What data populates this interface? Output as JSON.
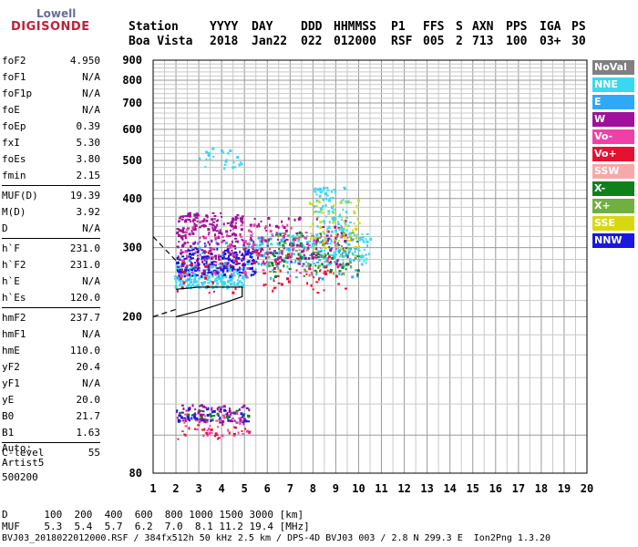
{
  "logo": {
    "line1": "Lowell",
    "line2": "DIGISONDE"
  },
  "header": {
    "labels": [
      "Station",
      "YYYY",
      "DAY",
      "DDD",
      "HHMMSS",
      "P1",
      "FFS",
      "S",
      "AXN",
      "PPS",
      "IGA",
      "PS"
    ],
    "values": [
      "Boa Vista",
      "2018",
      "Jan22",
      "022",
      "012000",
      "RSF",
      "005",
      "2",
      "713",
      "100",
      "03+",
      "30"
    ]
  },
  "params": {
    "group1": [
      {
        "k": "foF2",
        "v": "4.950"
      },
      {
        "k": "foF1",
        "v": "N/A"
      },
      {
        "k": "foF1p",
        "v": "N/A"
      },
      {
        "k": "foE",
        "v": "N/A"
      },
      {
        "k": "foEp",
        "v": "0.39"
      },
      {
        "k": "fxI",
        "v": "5.30"
      },
      {
        "k": "foEs",
        "v": "3.80"
      },
      {
        "k": "fmin",
        "v": "2.15"
      }
    ],
    "group2": [
      {
        "k": "MUF(D)",
        "v": "19.39"
      },
      {
        "k": "M(D)",
        "v": "3.92"
      },
      {
        "k": "D",
        "v": "N/A"
      }
    ],
    "group3": [
      {
        "k": "h`F",
        "v": "231.0"
      },
      {
        "k": "h`F2",
        "v": "231.0"
      },
      {
        "k": "h`E",
        "v": "N/A"
      },
      {
        "k": "h`Es",
        "v": "120.0"
      }
    ],
    "group4": [
      {
        "k": "hmF2",
        "v": "237.7"
      },
      {
        "k": "hmF1",
        "v": "N/A"
      },
      {
        "k": "hmE",
        "v": "110.0"
      },
      {
        "k": "yF2",
        "v": "20.4"
      },
      {
        "k": "yF1",
        "v": "N/A"
      },
      {
        "k": "yE",
        "v": "20.0"
      },
      {
        "k": "B0",
        "v": "21.7"
      },
      {
        "k": "B1",
        "v": "1.63"
      }
    ],
    "clevel": {
      "k": "C-level",
      "v": "55"
    },
    "auto": [
      "Auto:",
      "Artist5",
      "500200"
    ]
  },
  "legend": [
    {
      "label": "NoVal",
      "color": "#808080"
    },
    {
      "label": "NNE",
      "color": "#3ad8f0"
    },
    {
      "label": "E",
      "color": "#30a8f8"
    },
    {
      "label": "W",
      "color": "#a0109a"
    },
    {
      "label": "Vo-",
      "color": "#f040a8"
    },
    {
      "label": "Vo+",
      "color": "#e81030"
    },
    {
      "label": "SSW",
      "color": "#f8a8a8"
    },
    {
      "label": "X-",
      "color": "#10801a"
    },
    {
      "label": "X+",
      "color": "#70b040"
    },
    {
      "label": "SSE",
      "color": "#d8d810"
    },
    {
      "label": "NNW",
      "color": "#1818e0"
    }
  ],
  "chart_data": {
    "type": "scatter",
    "title": "",
    "xlabel": "",
    "ylabel": "",
    "xlim": [
      1,
      20
    ],
    "ylim": [
      80,
      900
    ],
    "x_ticks": [
      1,
      2,
      3,
      4,
      5,
      6,
      7,
      8,
      9,
      10,
      11,
      12,
      13,
      14,
      15,
      16,
      17,
      18,
      19,
      20
    ],
    "y_ticks": [
      80,
      200,
      300,
      400,
      500,
      600,
      700,
      800,
      900
    ],
    "y_log": true,
    "grid": true,
    "legend_placement": "right",
    "clusters": [
      {
        "series": "NNE",
        "x": [
          1.9,
          5.0
        ],
        "y": [
          238,
          275
        ],
        "n": 240
      },
      {
        "series": "NNE",
        "x": [
          5.0,
          10.5
        ],
        "y": [
          270,
          330
        ],
        "n": 220
      },
      {
        "series": "E",
        "x": [
          2.0,
          10.0
        ],
        "y": [
          250,
          320
        ],
        "n": 120
      },
      {
        "series": "W",
        "x": [
          2.0,
          5.0
        ],
        "y": [
          260,
          370
        ],
        "n": 260
      },
      {
        "series": "W",
        "x": [
          5.0,
          9.5
        ],
        "y": [
          270,
          360
        ],
        "n": 120
      },
      {
        "series": "NNW",
        "x": [
          2.0,
          5.5
        ],
        "y": [
          255,
          300
        ],
        "n": 160
      },
      {
        "series": "Vo-",
        "x": [
          2.0,
          9.5
        ],
        "y": [
          255,
          350
        ],
        "n": 120
      },
      {
        "series": "Vo+",
        "x": [
          2.0,
          9.5
        ],
        "y": [
          230,
          300
        ],
        "n": 90
      },
      {
        "series": "X-",
        "x": [
          6.0,
          10.0
        ],
        "y": [
          255,
          330
        ],
        "n": 60
      },
      {
        "series": "X+",
        "x": [
          6.0,
          10.0
        ],
        "y": [
          255,
          330
        ],
        "n": 50
      },
      {
        "series": "SSE",
        "x": [
          7.8,
          10.0
        ],
        "y": [
          300,
          400
        ],
        "n": 70
      },
      {
        "series": "NNE",
        "x": [
          8.0,
          9.6
        ],
        "y": [
          330,
          430
        ],
        "n": 80
      },
      {
        "series": "W",
        "x": [
          2.0,
          5.2
        ],
        "y": [
          108,
          120
        ],
        "n": 70
      },
      {
        "series": "NNW",
        "x": [
          2.0,
          5.2
        ],
        "y": [
          108,
          118
        ],
        "n": 50
      },
      {
        "series": "Vo-",
        "x": [
          2.0,
          5.2
        ],
        "y": [
          100,
          115
        ],
        "n": 40
      },
      {
        "series": "X-",
        "x": [
          2.0,
          5.2
        ],
        "y": [
          110,
          116
        ],
        "n": 20
      },
      {
        "series": "Vo+",
        "x": [
          2.0,
          5.2
        ],
        "y": [
          98,
          110
        ],
        "n": 25
      },
      {
        "series": "NNE",
        "x": [
          3.0,
          4.9
        ],
        "y": [
          480,
          540
        ],
        "n": 25
      }
    ],
    "profile_solid": [
      [
        2.0,
        200
      ],
      [
        3.0,
        207
      ],
      [
        4.0,
        216
      ],
      [
        4.9,
        225
      ],
      [
        4.9,
        238
      ],
      [
        4.0,
        238
      ],
      [
        3.0,
        238
      ],
      [
        2.0,
        235
      ]
    ],
    "profile_dashed_lower": [
      [
        1.0,
        200
      ],
      [
        2.0,
        209
      ]
    ],
    "profile_dashed_upper": [
      [
        1.0,
        320
      ],
      [
        2.0,
        278
      ]
    ]
  },
  "footer": {
    "d_row": "D      100  200  400  600  800 1000 1500 3000 [km]",
    "muf_row": "MUF    5.3  5.4  5.7  6.2  7.0  8.1 11.2 19.4 [MHz]",
    "file_row": "BVJ03_2018022012000.RSF / 384fx512h 50 kHz 2.5 km / DPS-4D BVJ03 003 / 2.8 N 299.3 E  Ion2Png 1.3.20"
  }
}
